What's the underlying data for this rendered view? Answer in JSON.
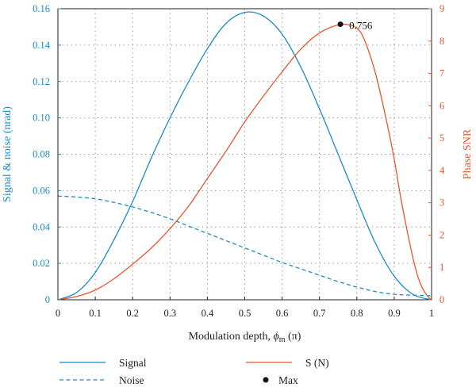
{
  "colors": {
    "left_axis": "#1b8ac8",
    "right_axis": "#e4572e",
    "text": "#222222",
    "marker": "#111111"
  },
  "chart_data": {
    "type": "line",
    "xlabel_prefix": "Modulation depth, ",
    "xlabel_symbol": "ϕ",
    "xlabel_subscript": "m",
    "xlabel_suffix": " (π)",
    "ylabel_left": "Signal & noise (nrad)",
    "ylabel_right": "Phase SNR",
    "xlim": [
      0,
      1
    ],
    "ylim_left": [
      0,
      0.16
    ],
    "ylim_right": [
      0,
      9
    ],
    "x_ticks": [
      "0",
      "0.1",
      "0.2",
      "0.3",
      "0.4",
      "0.5",
      "0.6",
      "0.7",
      "0.8",
      "0.9",
      "1"
    ],
    "y_left_ticks": [
      "0",
      "0.02",
      "0.04",
      "0.06",
      "0.08",
      "0.10",
      "0.12",
      "0.14",
      "0.16"
    ],
    "y_right_ticks": [
      "0",
      "1",
      "2",
      "3",
      "4",
      "5",
      "6",
      "7",
      "8",
      "9"
    ],
    "grid": "dotted",
    "legend_position": "bottom",
    "series": [
      {
        "name": "Signal",
        "axis": "left",
        "style": "solid",
        "color": "#1b8ac8",
        "x": [
          0,
          0.05,
          0.1,
          0.15,
          0.2,
          0.25,
          0.3,
          0.35,
          0.4,
          0.45,
          0.5,
          0.55,
          0.6,
          0.65,
          0.7,
          0.75,
          0.8,
          0.85,
          0.9,
          0.95,
          1.0
        ],
        "y": [
          0,
          0.004,
          0.015,
          0.033,
          0.054,
          0.078,
          0.1,
          0.12,
          0.138,
          0.152,
          0.158,
          0.156,
          0.146,
          0.128,
          0.105,
          0.08,
          0.055,
          0.031,
          0.013,
          0.003,
          0
        ]
      },
      {
        "name": "Noise",
        "axis": "left",
        "style": "dashed",
        "color": "#1b8ac8",
        "x": [
          0,
          0.05,
          0.1,
          0.15,
          0.2,
          0.25,
          0.3,
          0.35,
          0.4,
          0.45,
          0.5,
          0.55,
          0.6,
          0.65,
          0.7,
          0.75,
          0.8,
          0.85,
          0.9,
          0.95,
          1.0
        ],
        "y": [
          0.057,
          0.0565,
          0.0555,
          0.0535,
          0.051,
          0.048,
          0.0445,
          0.0405,
          0.0365,
          0.0325,
          0.0285,
          0.0245,
          0.0205,
          0.017,
          0.0135,
          0.01,
          0.007,
          0.0045,
          0.003,
          0.0025,
          0.0022
        ]
      },
      {
        "name": "S (N)",
        "axis": "right",
        "style": "solid",
        "color": "#e4572e",
        "x": [
          0,
          0.05,
          0.1,
          0.15,
          0.2,
          0.25,
          0.3,
          0.35,
          0.4,
          0.45,
          0.5,
          0.55,
          0.6,
          0.65,
          0.7,
          0.75,
          0.78,
          0.8,
          0.82,
          0.85,
          0.88,
          0.9,
          0.92,
          0.95,
          0.97,
          0.99,
          1.0
        ],
        "y": [
          0,
          0.1,
          0.3,
          0.65,
          1.1,
          1.6,
          2.2,
          2.9,
          3.75,
          4.6,
          5.5,
          6.3,
          7.05,
          7.75,
          8.25,
          8.5,
          8.5,
          8.4,
          8.05,
          7.0,
          5.5,
          4.35,
          3.0,
          1.3,
          0.5,
          0.1,
          0
        ]
      },
      {
        "name": "Max",
        "axis": "right",
        "style": "marker",
        "color": "#111111",
        "x": [
          0.756
        ],
        "y": [
          8.52
        ]
      }
    ],
    "annotations": [
      {
        "text": "0.756",
        "x": 0.756,
        "y": 8.52,
        "axis": "right"
      }
    ]
  }
}
